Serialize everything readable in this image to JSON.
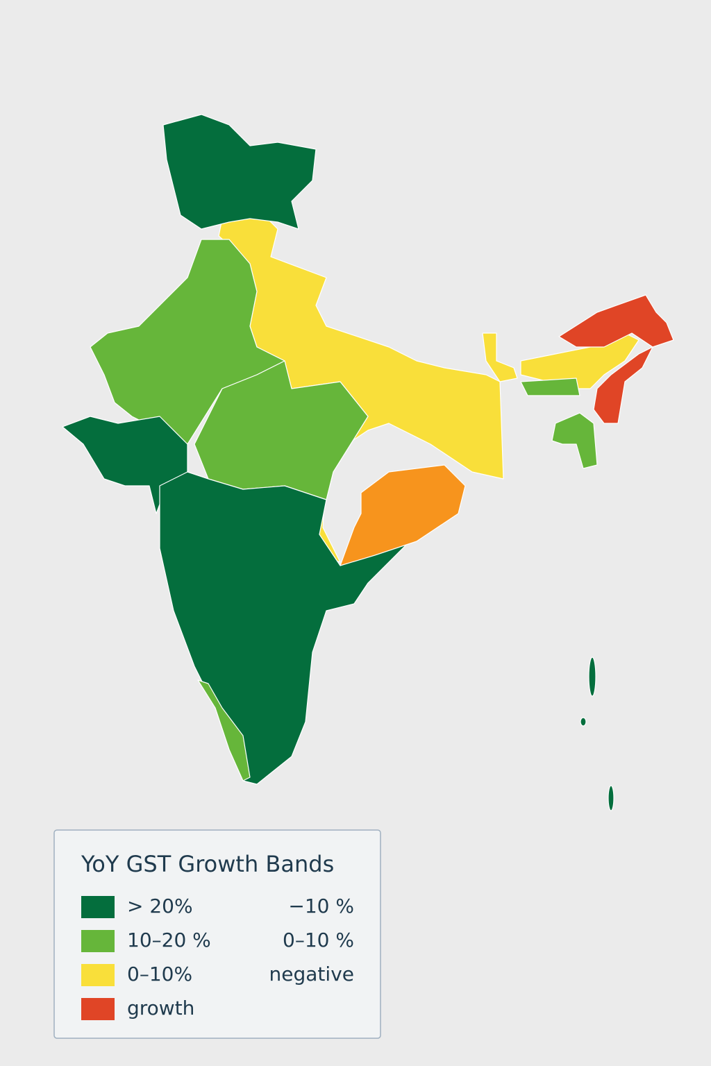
{
  "legend": {
    "title": "YoY GST Growth Bands",
    "items": [
      {
        "label": "> 20%",
        "color": "#046e3d"
      },
      {
        "label": "10–20 %",
        "color": "#66b63a"
      },
      {
        "label": "0–10%",
        "color": "#f9df3a"
      },
      {
        "label": "growth",
        "color": "#e04526"
      }
    ],
    "notes": [
      "−10 %",
      "0–10 %",
      "negative"
    ]
  }
}
